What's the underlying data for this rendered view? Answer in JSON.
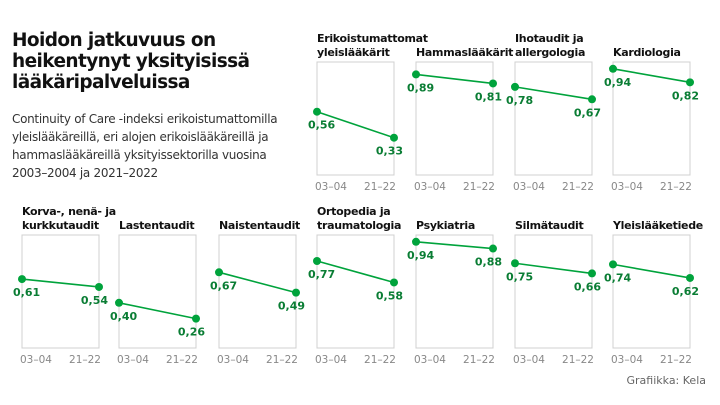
{
  "title": "Hoidon jatkuvuus on heikentynyt yksityisissä lääkäripalveluissa",
  "subtitle": "Continuity of Care -indeksi erikoistumattomilla yleislääkäreillä, eri alojen erikoislääkäreillä ja hammaslääkäreillä yksityissektorilla vuosina 2003–2004 ja 2021–2022",
  "credit": "Grafiikka: Kela",
  "colors": {
    "line": "#00a33c",
    "label": "#0a7d34",
    "frame": "#d0d0d0"
  },
  "chart_data": {
    "type": "line",
    "categories": [
      "03–04",
      "21–22"
    ],
    "ylim": [
      0,
      1
    ],
    "grid": false,
    "panels": [
      {
        "title": [
          "Erikoistumattomat",
          "yleislääkärit"
        ],
        "values": [
          0.56,
          0.33
        ],
        "labels": [
          "0,56",
          "0,33"
        ]
      },
      {
        "title": [
          "Hammaslääkärit"
        ],
        "values": [
          0.89,
          0.81
        ],
        "labels": [
          "0,89",
          "0,81"
        ]
      },
      {
        "title": [
          "Ihotaudit ja",
          "allergologia"
        ],
        "values": [
          0.78,
          0.67
        ],
        "labels": [
          "0,78",
          "0,67"
        ]
      },
      {
        "title": [
          "Kardiologia"
        ],
        "values": [
          0.94,
          0.82
        ],
        "labels": [
          "0,94",
          "0,82"
        ]
      },
      {
        "title": [
          "Korva-, nenä- ja",
          "kurkkutaudit"
        ],
        "values": [
          0.61,
          0.54
        ],
        "labels": [
          "0,61",
          "0,54"
        ]
      },
      {
        "title": [
          "Lastentaudit"
        ],
        "values": [
          0.4,
          0.26
        ],
        "labels": [
          "0,40",
          "0,26"
        ]
      },
      {
        "title": [
          "Naistentaudit"
        ],
        "values": [
          0.67,
          0.49
        ],
        "labels": [
          "0,67",
          "0,49"
        ]
      },
      {
        "title": [
          "Ortopedia ja",
          "traumatologia"
        ],
        "values": [
          0.77,
          0.58
        ],
        "labels": [
          "0,77",
          "0,58"
        ]
      },
      {
        "title": [
          "Psykiatria"
        ],
        "values": [
          0.94,
          0.88
        ],
        "labels": [
          "0,94",
          "0,88"
        ]
      },
      {
        "title": [
          "Silmätaudit"
        ],
        "values": [
          0.75,
          0.66
        ],
        "labels": [
          "0,75",
          "0,66"
        ]
      },
      {
        "title": [
          "Yleislääketiede"
        ],
        "values": [
          0.74,
          0.62
        ],
        "labels": [
          "0,74",
          "0,62"
        ]
      }
    ]
  }
}
